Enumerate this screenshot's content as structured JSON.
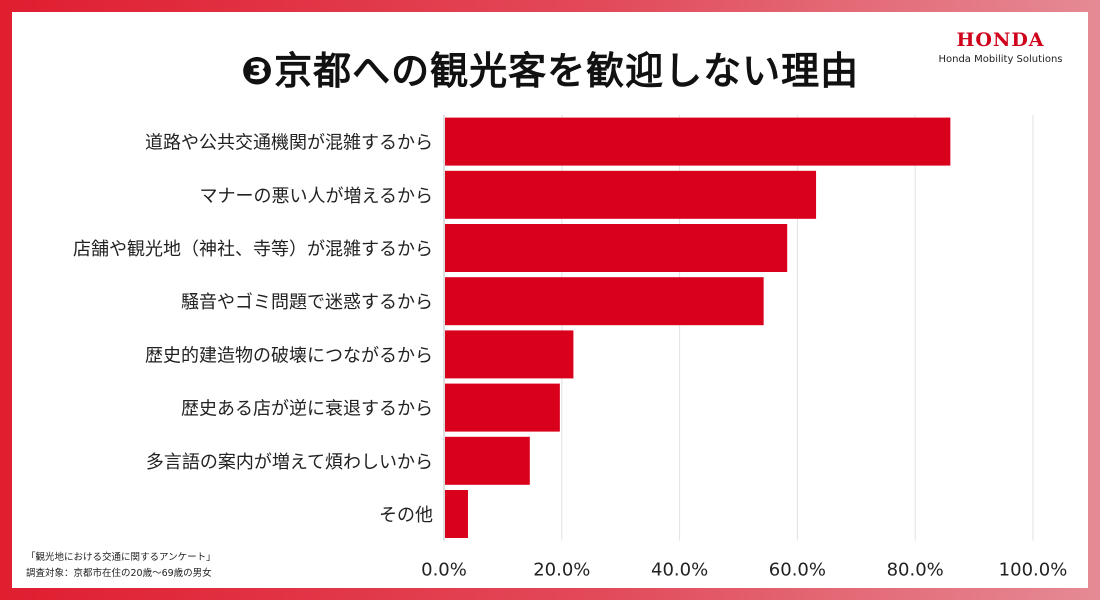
{
  "title": "❸京都への観光客を歓迎しない理由",
  "brand": {
    "mark": "HONDA",
    "subtitle": "Honda Mobility Solutions"
  },
  "footnote": {
    "line1": "「観光地における交通に関するアンケート」",
    "line2": "調査対象：京都市在住の20歳〜69歳の男女"
  },
  "colors": {
    "bar": "#d9001b",
    "frame": "#e01e30",
    "grid": "#e2e2e2"
  },
  "chart_data": {
    "type": "bar",
    "orientation": "horizontal",
    "categories": [
      "道路や公共交通機関が混雑するから",
      "マナーの悪い人が増えるから",
      "店舗や観光地（神社、寺等）が混雑するから",
      "騒音やゴミ問題で迷惑するから",
      "歴史的建造物の破壊につながるから",
      "歴史ある店が逆に衰退するから",
      "多言語の案内が増えて煩わしいから",
      "その他"
    ],
    "values": [
      85.8,
      63.0,
      58.1,
      54.1,
      21.8,
      19.5,
      14.4,
      3.9
    ],
    "xlim": [
      0,
      100
    ],
    "xticks": [
      "0.0%",
      "20.0%",
      "40.0%",
      "60.0%",
      "80.0%",
      "100.0%"
    ],
    "grid": true
  }
}
